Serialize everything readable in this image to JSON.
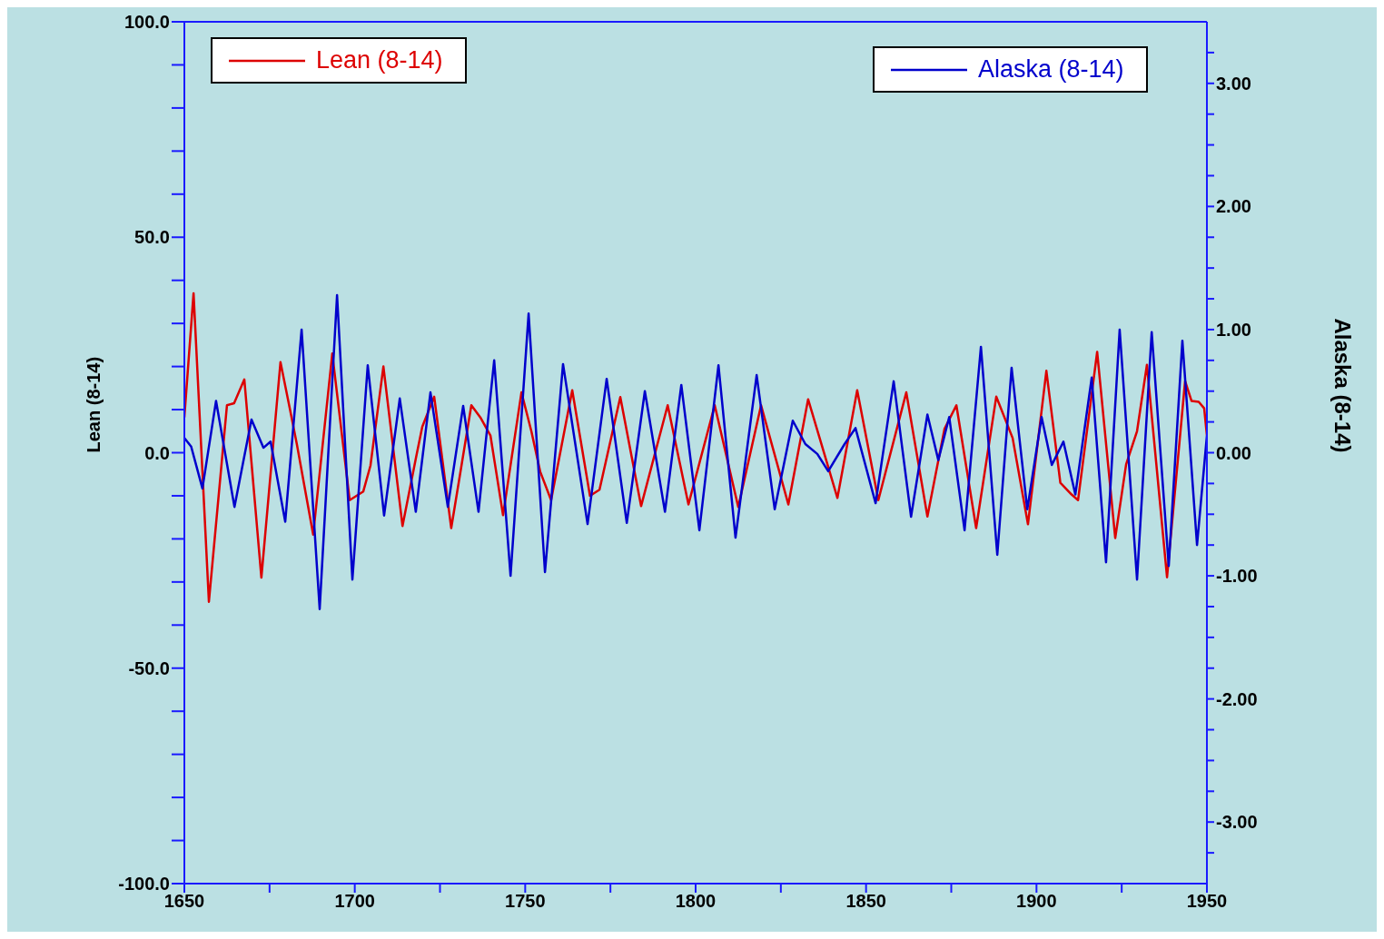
{
  "chart_data": {
    "type": "line",
    "xlim": [
      1650,
      1950
    ],
    "xticks": [
      1650,
      {
        "value": 1675,
        "label": null
      },
      1700,
      {
        "value": 1725,
        "label": null
      },
      1750,
      {
        "value": 1775,
        "label": null
      },
      1800,
      {
        "value": 1825,
        "label": null
      },
      1850,
      {
        "value": 1875,
        "label": null
      },
      1900,
      {
        "value": 1925,
        "label": null
      },
      1950
    ],
    "ylim": [
      -100,
      100
    ],
    "yticks": [
      {
        "value": -100,
        "label": "-100.0"
      },
      {
        "value": -90,
        "label": null
      },
      {
        "value": -80,
        "label": null
      },
      {
        "value": -70,
        "label": null
      },
      {
        "value": -60,
        "label": null
      },
      {
        "value": -50,
        "label": "-50.0"
      },
      {
        "value": -40,
        "label": null
      },
      {
        "value": -30,
        "label": null
      },
      {
        "value": -20,
        "label": null
      },
      {
        "value": -10,
        "label": null
      },
      {
        "value": 0,
        "label": "0.0"
      },
      {
        "value": 10,
        "label": null
      },
      {
        "value": 20,
        "label": null
      },
      {
        "value": 30,
        "label": null
      },
      {
        "value": 40,
        "label": null
      },
      {
        "value": 50,
        "label": "50.0"
      },
      {
        "value": 60,
        "label": null
      },
      {
        "value": 70,
        "label": null
      },
      {
        "value": 80,
        "label": null
      },
      {
        "value": 90,
        "label": null
      },
      {
        "value": 100,
        "label": "100.0"
      }
    ],
    "y2lim": [
      -3.5,
      3.5
    ],
    "y2ticks": [
      {
        "value": -3.25,
        "label": null
      },
      {
        "value": -3,
        "label": "-3.00"
      },
      {
        "value": -2.75,
        "label": null
      },
      {
        "value": -2.5,
        "label": null
      },
      {
        "value": -2.25,
        "label": null
      },
      {
        "value": -2,
        "label": "-2.00"
      },
      {
        "value": -1.75,
        "label": null
      },
      {
        "value": -1.5,
        "label": null
      },
      {
        "value": -1.25,
        "label": null
      },
      {
        "value": -1,
        "label": "-1.00"
      },
      {
        "value": -0.75,
        "label": null
      },
      {
        "value": -0.5,
        "label": null
      },
      {
        "value": -0.25,
        "label": null
      },
      {
        "value": 0,
        "label": "0.00"
      },
      {
        "value": 0.25,
        "label": null
      },
      {
        "value": 0.5,
        "label": null
      },
      {
        "value": 0.75,
        "label": null
      },
      {
        "value": 1,
        "label": "1.00"
      },
      {
        "value": 1.25,
        "label": null
      },
      {
        "value": 1.5,
        "label": null
      },
      {
        "value": 1.75,
        "label": null
      },
      {
        "value": 2,
        "label": "2.00"
      },
      {
        "value": 2.25,
        "label": null
      },
      {
        "value": 2.5,
        "label": null
      },
      {
        "value": 2.75,
        "label": null
      },
      {
        "value": 3,
        "label": "3.00"
      },
      {
        "value": 3.25,
        "label": null
      }
    ],
    "ylabel": "Lean (8-14)",
    "y2label": "Alaska (8-14)",
    "grid": false,
    "legend": "top",
    "marker": "none",
    "line_style": "solid",
    "series": [
      {
        "name": "Lean (8-14)",
        "color": "#dd0000",
        "x": [
          1650,
          1652.7,
          1657.2,
          1662.5,
          1664.6,
          1667.6,
          1672.6,
          1678.2,
          1681,
          1683,
          1687.8,
          1693.4,
          1698.5,
          1702.5,
          1704.6,
          1708.4,
          1714,
          1718,
          1719.8,
          1723.3,
          1728.3,
          1734.2,
          1737,
          1739.8,
          1743.5,
          1748.9,
          1751.8,
          1754.4,
          1757.6,
          1763.8,
          1769,
          1771.8,
          1777.9,
          1784,
          1791.8,
          1797.9,
          1805.6,
          1812.5,
          1819.2,
          1827.2,
          1833,
          1841.6,
          1847.4,
          1853.6,
          1861.8,
          1868,
          1873,
          1876.5,
          1882.3,
          1888.2,
          1893,
          1897.5,
          1902.9,
          1907,
          1910.3,
          1912.2,
          1917.8,
          1923.1,
          1926.3,
          1929.5,
          1932.4,
          1938.3,
          1943.6,
          1945.5,
          1947.6,
          1949.2,
          1950
        ],
        "values": [
          8.2,
          37,
          -34.6,
          11,
          11.5,
          17,
          -29,
          21,
          10,
          2,
          -19,
          23,
          -11,
          -9,
          -3,
          20,
          -17,
          -1,
          6,
          13,
          -17.5,
          11,
          8,
          4,
          -14.5,
          14,
          5,
          -4.4,
          -11,
          14.5,
          -10,
          -8.6,
          12.9,
          -12.4,
          11,
          -12,
          11,
          -12.6,
          11,
          -12,
          12.4,
          -10.5,
          14.5,
          -11,
          14,
          -14.8,
          5.5,
          11,
          -17.5,
          13,
          3.4,
          -16.6,
          19,
          -7,
          -9.7,
          -11,
          23.4,
          -19.8,
          -2.7,
          5,
          20.4,
          -28.9,
          16.6,
          12,
          11.8,
          10.3,
          4
        ]
      },
      {
        "name": "Alaska (8-14)",
        "color": "#0000cc",
        "axis": "y2",
        "x": [
          1650,
          1652,
          1655.3,
          1659.3,
          1664.7,
          1669.7,
          1673.2,
          1675.3,
          1679.6,
          1684.4,
          1689.7,
          1694.8,
          1699.3,
          1703.8,
          1708.6,
          1713.2,
          1717.9,
          1722.2,
          1727.3,
          1731.8,
          1736.3,
          1740.9,
          1745.7,
          1751,
          1755.8,
          1761.1,
          1768.3,
          1773.9,
          1779.8,
          1785.1,
          1791,
          1795.8,
          1801.1,
          1806.7,
          1811.7,
          1817.9,
          1823.2,
          1828.5,
          1832.2,
          1835.7,
          1838.9,
          1843.7,
          1846.9,
          1852.8,
          1858.1,
          1863.2,
          1868,
          1871.2,
          1874.4,
          1878.9,
          1883.7,
          1888.5,
          1892.7,
          1897.3,
          1901.5,
          1904.5,
          1907.9,
          1911.4,
          1916.2,
          1920.4,
          1924.4,
          1929.5,
          1933.8,
          1938.8,
          1942.8,
          1947.1,
          1950
        ],
        "values": [
          0.12,
          0.05,
          -0.29,
          0.42,
          -0.44,
          0.27,
          0.04,
          0.09,
          -0.56,
          1.0,
          -1.27,
          1.28,
          -1.03,
          0.71,
          -0.51,
          0.44,
          -0.48,
          0.49,
          -0.44,
          0.38,
          -0.48,
          0.75,
          -1.0,
          1.13,
          -0.97,
          0.72,
          -0.58,
          0.6,
          -0.57,
          0.5,
          -0.48,
          0.55,
          -0.63,
          0.71,
          -0.69,
          0.63,
          -0.46,
          0.26,
          0.07,
          -0.01,
          -0.15,
          0.07,
          0.2,
          -0.41,
          0.58,
          -0.52,
          0.31,
          -0.06,
          0.29,
          -0.63,
          0.86,
          -0.83,
          0.69,
          -0.46,
          0.29,
          -0.1,
          0.09,
          -0.34,
          0.61,
          -0.89,
          1.0,
          -1.03,
          0.98,
          -0.92,
          0.91,
          -0.75,
          0.14
        ]
      }
    ]
  }
}
